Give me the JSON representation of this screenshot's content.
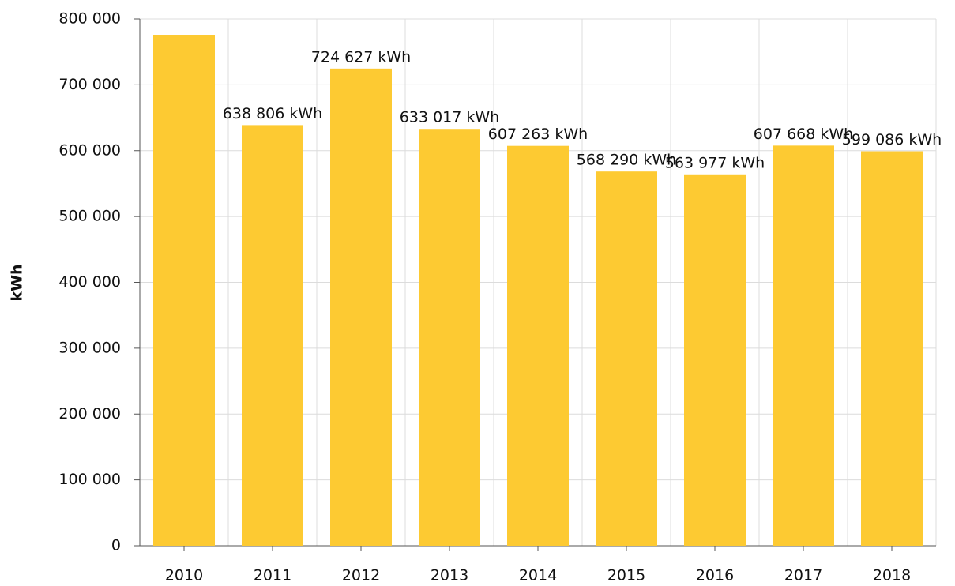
{
  "chart_data": {
    "type": "bar",
    "y_label": "kWh",
    "categories": [
      "2010",
      "2011",
      "2012",
      "2013",
      "2014",
      "2015",
      "2016",
      "2017",
      "2018"
    ],
    "values": [
      776000,
      638806,
      724627,
      633017,
      607263,
      568290,
      563977,
      607668,
      599086
    ],
    "value_labels": [
      null,
      "638 806 kWh",
      "724 627 kWh",
      "633 017 kWh",
      "607 263 kWh",
      "568 290 kWh",
      "563 977 kWh",
      "607 668 kWh",
      "599 086 kWh"
    ],
    "color": "#fdca32",
    "ylim": [
      0,
      800000
    ],
    "yticks": [
      0,
      {
        "value": 100000,
        "label": "100 000"
      },
      {
        "value": 200000,
        "label": "200 000"
      },
      {
        "value": 300000,
        "label": "300 000"
      },
      {
        "value": 400000,
        "label": "400 000"
      },
      {
        "value": 500000,
        "label": "500 000"
      },
      {
        "value": 600000,
        "label": "600 000"
      },
      {
        "value": 700000,
        "label": "700 000"
      },
      {
        "value": 800000,
        "label": "800 000"
      }
    ],
    "grid": true
  }
}
